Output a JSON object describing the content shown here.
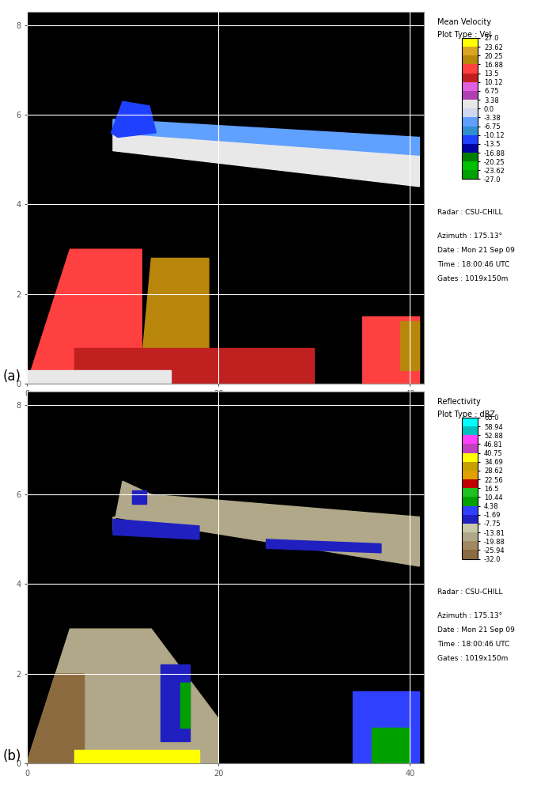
{
  "chart_data": [
    {
      "type": "heatmap",
      "panel_label": "(a)",
      "title": "Mean Velocity",
      "subtitle": "Plot Type : Vel",
      "annotations": [
        "Radar : CSU-CHILL",
        "Azimuth : 175.13°",
        "Date : Mon 21 Sep 09",
        "Time : 18:00:46 UTC",
        "Gates : 1019x150m"
      ],
      "xlim": [
        0,
        41.5
      ],
      "ylim": [
        0,
        8.3
      ],
      "xticks": [
        0,
        20,
        40
      ],
      "yticks": [
        0,
        2,
        4,
        6,
        8
      ],
      "grid": true,
      "colorbar": {
        "ticks": [
          -27.0,
          -23.62,
          -20.25,
          -16.88,
          -13.5,
          -10.12,
          -6.75,
          -3.38,
          0.0,
          3.38,
          6.75,
          10.12,
          13.5,
          16.88,
          20.25,
          23.62,
          27.0
        ],
        "colors": [
          "#00a000",
          "#00c000",
          "#008000",
          "#0000a0",
          "#2040ff",
          "#3090d0",
          "#60a0ff",
          "#d0d8f0",
          "#e8e8e8",
          "#b040b0",
          "#e060e0",
          "#c02020",
          "#ff4040",
          "#b8860b",
          "#daa520",
          "#ffff00"
        ]
      },
      "regions": [
        {
          "value": 1,
          "x": [
            9,
            41,
            41,
            9
          ],
          "y": [
            5.2,
            4.4,
            5.3,
            5.75
          ]
        },
        {
          "value": -5,
          "x": [
            9,
            41,
            41,
            9
          ],
          "y": [
            5.6,
            5.1,
            5.5,
            5.9
          ]
        },
        {
          "value": -12,
          "x": [
            8.8,
            10,
            12.8,
            13.5,
            9.5
          ],
          "y": [
            5.6,
            6.3,
            6.2,
            5.6,
            5.5
          ]
        },
        {
          "value": 15,
          "x": [
            0,
            4.5,
            12,
            12,
            0
          ],
          "y": [
            0,
            3,
            3,
            0,
            0
          ]
        },
        {
          "value": 18,
          "x": [
            12,
            13,
            19,
            19,
            12
          ],
          "y": [
            0.5,
            2.8,
            2.8,
            0.5,
            0.5
          ]
        },
        {
          "value": 12,
          "x": [
            5,
            30,
            30,
            5
          ],
          "y": [
            0,
            0,
            0.8,
            0.8
          ]
        },
        {
          "value": 15,
          "x": [
            35,
            41,
            41,
            35
          ],
          "y": [
            0,
            0,
            1.5,
            1.5
          ]
        },
        {
          "value": 18,
          "x": [
            39,
            41,
            41,
            39
          ],
          "y": [
            0.3,
            0.3,
            1.4,
            1.4
          ]
        },
        {
          "value": 1,
          "x": [
            0,
            15,
            15,
            0
          ],
          "y": [
            0,
            0,
            0.3,
            0.3
          ]
        }
      ]
    },
    {
      "type": "heatmap",
      "panel_label": "(b)",
      "title": "Reflectivity",
      "subtitle": "Plot Type : dBZ",
      "annotations": [
        "Radar : CSU-CHILL",
        "Azimuth : 175.13°",
        "Date : Mon 21 Sep 09",
        "Time : 18:00:46 UTC",
        "Gates : 1019x150m"
      ],
      "xlim": [
        0,
        41.5
      ],
      "ylim": [
        0,
        8.3
      ],
      "xticks": [
        0,
        20,
        40
      ],
      "yticks": [
        0,
        2,
        4,
        6,
        8
      ],
      "grid": true,
      "colorbar": {
        "ticks": [
          -32.0,
          -25.94,
          -19.88,
          -13.81,
          -7.75,
          -1.69,
          4.38,
          10.44,
          16.5,
          22.56,
          28.62,
          34.69,
          40.75,
          46.81,
          52.88,
          58.94,
          65.0
        ],
        "colors": [
          "#8b6a40",
          "#a08860",
          "#b0a888",
          "#c8c8a8",
          "#2020c0",
          "#3040ff",
          "#00a000",
          "#20c020",
          "#c00000",
          "#e0a000",
          "#c8a000",
          "#ffff00",
          "#c040c0",
          "#ff40ff",
          "#00c0c0",
          "#00ffff"
        ]
      },
      "regions": [
        {
          "value": -15,
          "x": [
            9,
            10,
            13,
            41,
            41,
            9
          ],
          "y": [
            5.2,
            6.3,
            6.0,
            5.5,
            4.4,
            5.5
          ]
        },
        {
          "value": -5,
          "x": [
            9,
            18,
            18,
            9
          ],
          "y": [
            5.1,
            5.0,
            5.3,
            5.45
          ]
        },
        {
          "value": -5,
          "x": [
            25,
            37,
            37,
            25
          ],
          "y": [
            4.8,
            4.7,
            4.9,
            5.0
          ]
        },
        {
          "value": -5,
          "x": [
            11,
            12.5,
            12.5,
            11
          ],
          "y": [
            5.8,
            5.8,
            6.1,
            6.1
          ]
        },
        {
          "value": -15,
          "x": [
            0,
            4.5,
            13,
            20,
            20,
            0
          ],
          "y": [
            0,
            3,
            3,
            1,
            0,
            0
          ]
        },
        {
          "value": -27,
          "x": [
            0,
            3,
            6,
            6,
            0
          ],
          "y": [
            0,
            2,
            2,
            0,
            0
          ]
        },
        {
          "value": -5,
          "x": [
            14,
            17,
            17,
            14
          ],
          "y": [
            0.5,
            0.5,
            2.2,
            2.2
          ]
        },
        {
          "value": 8,
          "x": [
            16,
            17,
            17,
            16
          ],
          "y": [
            0.8,
            0.8,
            1.8,
            1.8
          ]
        },
        {
          "value": 0,
          "x": [
            34,
            41,
            41,
            34
          ],
          "y": [
            0,
            0,
            1.6,
            1.6
          ]
        },
        {
          "value": 8,
          "x": [
            36,
            40,
            40,
            36
          ],
          "y": [
            0,
            0,
            0.8,
            0.8
          ]
        },
        {
          "value": 36,
          "x": [
            5,
            18,
            18,
            5
          ],
          "y": [
            0,
            0,
            0.3,
            0.3
          ]
        }
      ]
    }
  ]
}
